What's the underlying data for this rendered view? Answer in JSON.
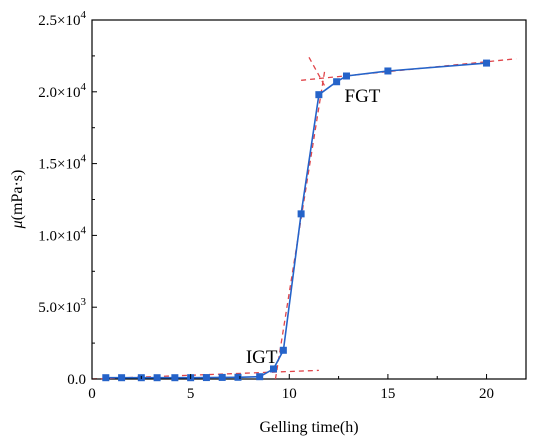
{
  "chart_data": {
    "type": "line",
    "xlabel": "Gelling time(h)",
    "ylabel_symbol": "μ",
    "ylabel_unit": "(mPa·s)",
    "xlim": [
      0,
      22
    ],
    "ylim": [
      0,
      25000
    ],
    "x_ticks": [
      0,
      5,
      10,
      15,
      20
    ],
    "y_ticks": [
      0,
      5000,
      10000,
      15000,
      20000,
      25000
    ],
    "y_tick_labels": [
      {
        "mantissa": "0.0",
        "exponent": ""
      },
      {
        "mantissa": "5.0×10",
        "exponent": "3"
      },
      {
        "mantissa": "1.0×10",
        "exponent": "4"
      },
      {
        "mantissa": "1.5×10",
        "exponent": "4"
      },
      {
        "mantissa": "2.0×10",
        "exponent": "4"
      },
      {
        "mantissa": "2.5×10",
        "exponent": "4"
      }
    ],
    "grid": false,
    "series": [
      {
        "color": "#2563c9",
        "marker": "square",
        "x": [
          0.7,
          1.5,
          2.5,
          3.3,
          4.2,
          5.0,
          5.8,
          6.6,
          7.4,
          8.5,
          9.2,
          9.7,
          10.6,
          11.5,
          12.4,
          12.9,
          15.0,
          20.0
        ],
        "y": [
          90,
          90,
          90,
          90,
          90,
          90,
          100,
          110,
          120,
          160,
          700,
          2000,
          11500,
          19800,
          20700,
          21100,
          21450,
          22000
        ]
      }
    ],
    "fit_lines": [
      {
        "color": "#e0454a",
        "dash": "5,4",
        "x": [
          0.0,
          11.5
        ],
        "y": [
          0,
          600
        ]
      },
      {
        "color": "#e0454a",
        "dash": "5,4",
        "x": [
          9.3,
          11.8
        ],
        "y": [
          0,
          21500
        ]
      },
      {
        "color": "#e0454a",
        "dash": "5,4",
        "x": [
          10.6,
          21.5
        ],
        "y": [
          20800,
          22300
        ]
      },
      {
        "color": "#e0454a",
        "dash": "5,4",
        "x": [
          11.0,
          11.8
        ],
        "y": [
          22400,
          20400
        ]
      }
    ],
    "annotations": [
      {
        "text": "IGT",
        "x": 7.8,
        "y": 1100
      },
      {
        "text": "FGT",
        "x": 12.8,
        "y": 19300
      }
    ]
  }
}
